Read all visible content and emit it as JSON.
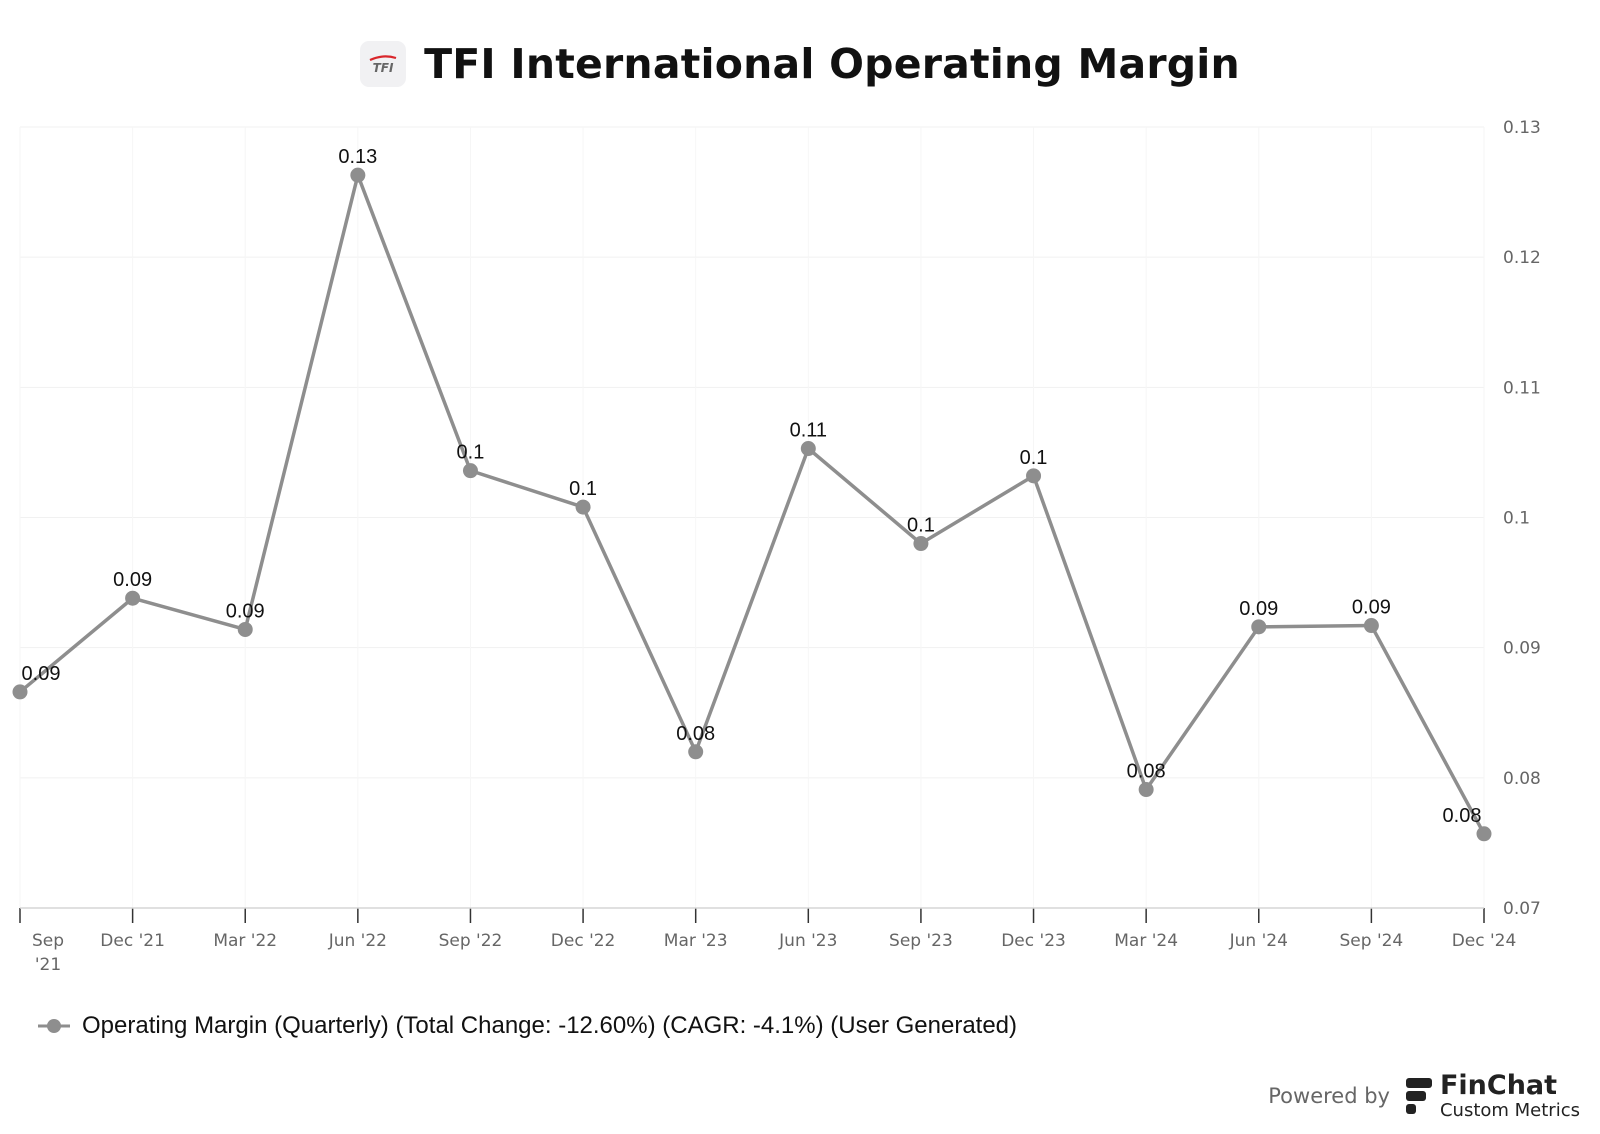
{
  "header": {
    "logo_text": "TFI",
    "title": "TFI International Operating Margin"
  },
  "chart_data": {
    "type": "line",
    "title": "TFI International Operating Margin",
    "categories": [
      "Sep '21",
      "Dec '21",
      "Mar '22",
      "Jun '22",
      "Sep '22",
      "Dec '22",
      "Mar '23",
      "Jun '23",
      "Sep '23",
      "Dec '23",
      "Mar '24",
      "Jun '24",
      "Sep '24",
      "Dec '24"
    ],
    "x_tick_labels": [
      [
        "Sep",
        "'21"
      ],
      [
        "Dec '21"
      ],
      [
        "Mar '22"
      ],
      [
        "Jun '22"
      ],
      [
        "Sep '22"
      ],
      [
        "Dec '22"
      ],
      [
        "Mar '23"
      ],
      [
        "Jun '23"
      ],
      [
        "Sep '23"
      ],
      [
        "Dec '23"
      ],
      [
        "Mar '24"
      ],
      [
        "Jun '24"
      ],
      [
        "Sep '24"
      ],
      [
        "Dec '24"
      ]
    ],
    "series": [
      {
        "name": "Operating Margin (Quarterly) (Total Change: -12.60%) (CAGR: -4.1%) (User Generated)",
        "color": "#8e8e8e",
        "values": [
          0.0866,
          0.0938,
          0.0914,
          0.1263,
          0.1036,
          0.1008,
          0.082,
          0.1053,
          0.098,
          0.1032,
          0.0791,
          0.0916,
          0.0917,
          0.0757
        ],
        "data_labels": [
          "0.09",
          "0.09",
          "0.09",
          "0.13",
          "0.1",
          "0.1",
          "0.08",
          "0.11",
          "0.1",
          "0.1",
          "0.08",
          "0.09",
          "0.09",
          "0.08"
        ]
      }
    ],
    "xlabel": "",
    "ylabel": "",
    "ylim": [
      0.07,
      0.13
    ],
    "y_ticks": [
      0.07,
      0.08,
      0.09,
      0.1,
      0.11,
      0.12,
      0.13
    ],
    "y_tick_labels": [
      "0.07",
      "0.08",
      "0.09",
      "0.1",
      "0.11",
      "0.12",
      "0.13"
    ],
    "y_axis_side": "right",
    "grid": true,
    "legend_position": "bottom-left"
  },
  "legend": {
    "label": "Operating Margin (Quarterly) (Total Change: -12.60%) (CAGR: -4.1%) (User Generated)"
  },
  "footer": {
    "powered_by": "Powered by",
    "brand_name": "FinChat",
    "brand_sub": "Custom Metrics"
  }
}
